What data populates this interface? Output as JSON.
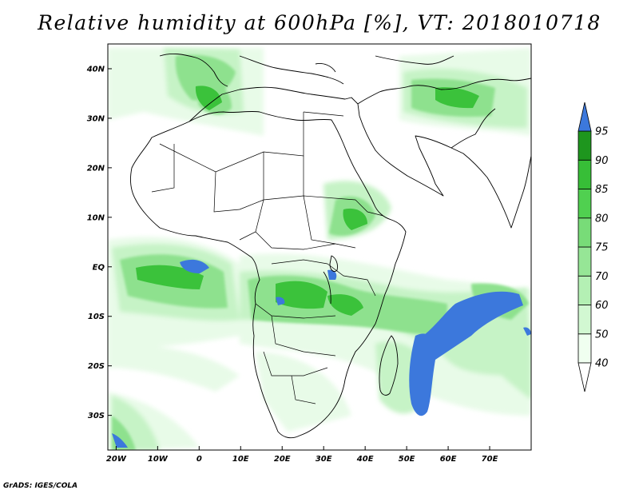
{
  "title": "Relative humidity at 600hPa [%], VT: 2018010718",
  "credit": "GrADS: IGES/COLA",
  "map": {
    "lon_range": [
      -22,
      80
    ],
    "lat_range": [
      -37,
      45
    ],
    "lat_labels": [
      "40N",
      "30N",
      "20N",
      "10N",
      "EQ",
      "10S",
      "20S",
      "30S"
    ],
    "lat_values": [
      40,
      30,
      20,
      10,
      0,
      -10,
      -20,
      -30
    ],
    "lon_labels": [
      "20W",
      "10W",
      "0",
      "10E",
      "20E",
      "30E",
      "40E",
      "50E",
      "60E",
      "70E"
    ],
    "lon_values": [
      -20,
      -10,
      0,
      10,
      20,
      30,
      40,
      50,
      60,
      70
    ]
  },
  "colorbar": {
    "levels": [
      "40",
      "50",
      "60",
      "70",
      "75",
      "80",
      "85",
      "90",
      "95"
    ],
    "colors": [
      "#f0fff0",
      "#d2f8d2",
      "#b4f0b4",
      "#96e696",
      "#78dc78",
      "#50d050",
      "#37be37",
      "#1e961e",
      "#3c78dc"
    ]
  }
}
